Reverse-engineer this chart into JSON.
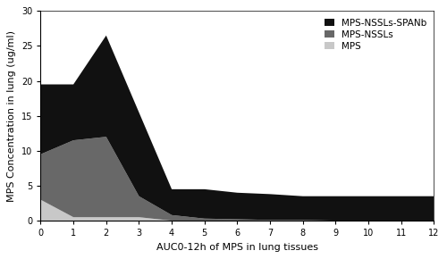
{
  "x": [
    0,
    1,
    2,
    3,
    4,
    5,
    6,
    7,
    8,
    9,
    10,
    11,
    12
  ],
  "mps": [
    3.0,
    0.5,
    0.5,
    0.5,
    0.0,
    0.0,
    0.0,
    0.0,
    0.0,
    0.0,
    0.0,
    0.0,
    0.0
  ],
  "mps_nssls": [
    6.5,
    11.0,
    11.5,
    3.0,
    0.8,
    0.3,
    0.2,
    0.1,
    0.1,
    0.0,
    0.0,
    0.0,
    0.0
  ],
  "mps_nssls_spanb": [
    10.0,
    8.0,
    14.5,
    12.0,
    3.7,
    4.2,
    3.8,
    3.7,
    3.4,
    3.5,
    3.5,
    3.5,
    3.5
  ],
  "color_mps": "#c8c8c8",
  "color_mps_nssls": "#686868",
  "color_mps_nssls_spanb": "#111111",
  "label_mps": "MPS",
  "label_mps_nssls": "MPS-NSSLs",
  "label_mps_nssls_spanb": "MPS-NSSLs-SPANb",
  "xlabel": "AUC0-12h of MPS in lung tissues",
  "ylabel": "MPS Concentration in lung (ug/ml)",
  "ylim": [
    0,
    30
  ],
  "xlim": [
    0,
    12
  ],
  "yticks": [
    0,
    5,
    10,
    15,
    20,
    25,
    30
  ],
  "xticks": [
    0,
    1,
    2,
    3,
    4,
    5,
    6,
    7,
    8,
    9,
    10,
    11,
    12
  ],
  "axis_fontsize": 8,
  "tick_fontsize": 7,
  "legend_fontsize": 7.5,
  "background_color": "#ffffff"
}
